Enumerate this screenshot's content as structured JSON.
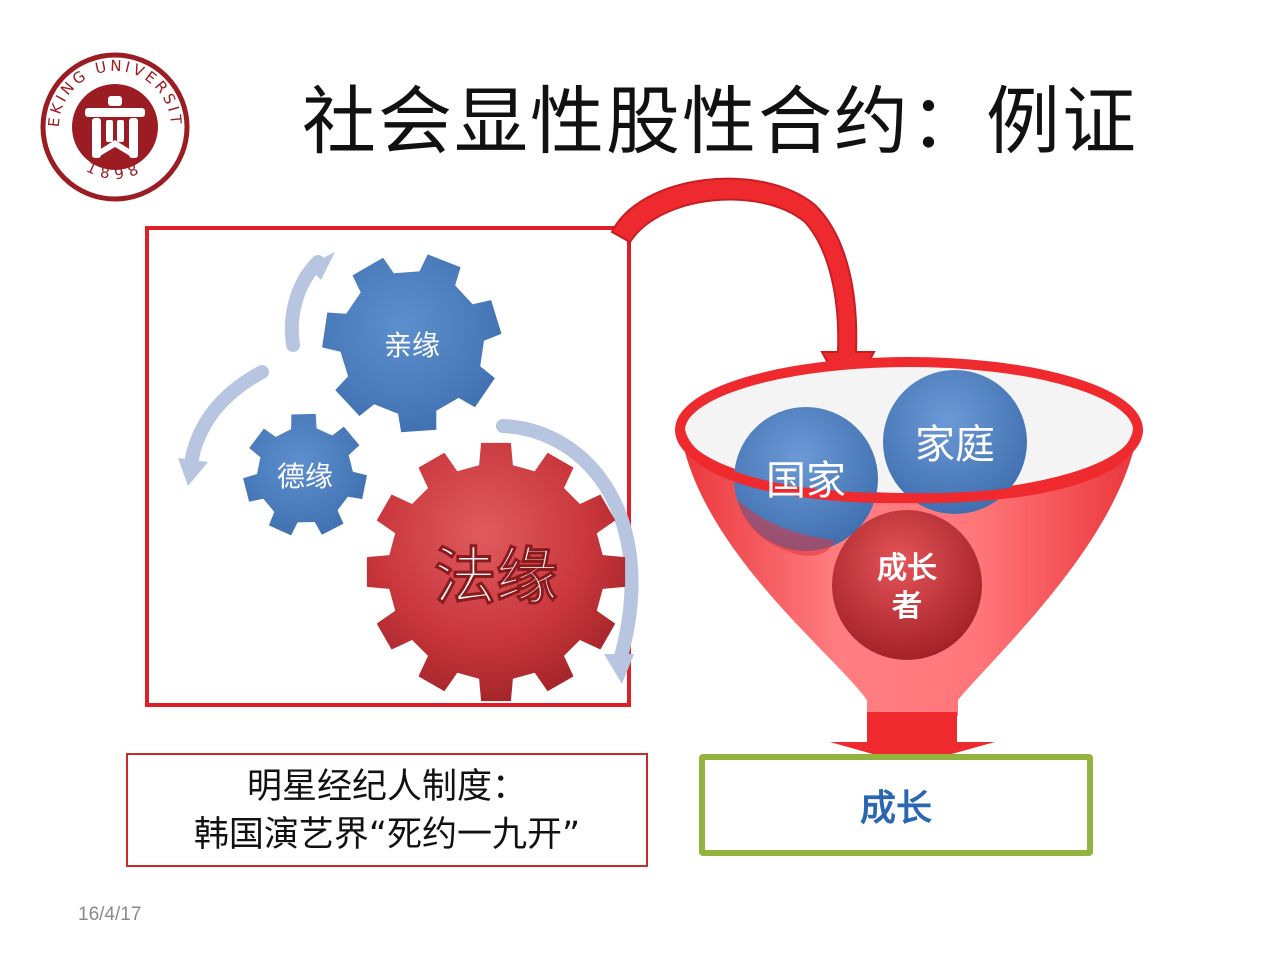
{
  "title": "社会显性股性合约：例证",
  "logo": {
    "seal_text": "PEKING UNIVERSITY",
    "year": "1898",
    "color": "#9b1c22"
  },
  "gears": {
    "small": "德缘",
    "medium": "亲缘",
    "large": "法缘"
  },
  "funnel": {
    "bubble_left": "国家",
    "bubble_right": "家庭",
    "bubble_center_line1": "成长",
    "bubble_center_line2": "者"
  },
  "caption": {
    "line1": "明星经纪人制度：",
    "line2": "韩国演艺界“死约一九开”"
  },
  "output_label": "成长",
  "date": "16/4/17",
  "colors": {
    "blue_gear": "#4e7fbf",
    "red_gear": "#c8363b",
    "funnel_red": "#ee2a2f",
    "frame_red": "#dd2027",
    "box_green": "#93b33f",
    "output_text": "#2b67b0"
  }
}
